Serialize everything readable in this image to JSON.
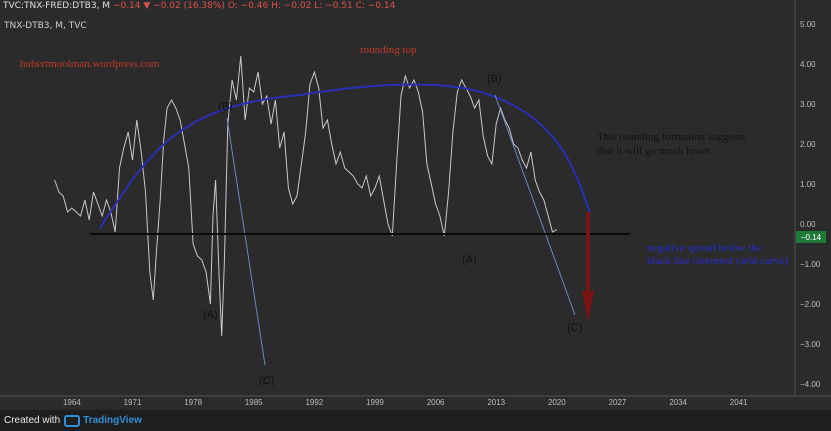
{
  "header": {
    "ticker": "TVC:TNX-FRED:DTB3, M",
    "change": "−0.14 ▼ −0.02 (16.38%)",
    "o": "O: −0.46",
    "h": "H: −0.02",
    "l": "L: −0.51",
    "c": "C: −0.14"
  },
  "symbol_line": "TNX-DTB3, M, TVC",
  "footer": {
    "created_with": "Created with",
    "brand": "TradingView"
  },
  "colors": {
    "price": "#c9c9c9",
    "arc": "#2b2fb8",
    "baseline": "#0a0a0a",
    "arrow": "#7a1414",
    "red_text": "#c0392b",
    "blue_text": "#2a2ad0",
    "last_badge": "#1f7a3a"
  },
  "chart_data": {
    "type": "line",
    "x_ticks": [
      "1964",
      "1971",
      "1978",
      "1985",
      "1992",
      "1999",
      "2006",
      "2013",
      "2020",
      "2027",
      "2034",
      "2041"
    ],
    "y_ticks": [
      "5.00",
      "4.00",
      "3.00",
      "2.00",
      "1.00",
      "0.00",
      "−1.00",
      "−2.00",
      "−3.00",
      "−4.00"
    ],
    "ylim": [
      -4.3,
      5.6
    ],
    "xlim": [
      1955.7,
      2047.5
    ],
    "last_value": "−0.14",
    "series": [
      {
        "x": [
          1962.0,
          1962.5,
          1963.0,
          1963.5,
          1964.0,
          1964.5,
          1965.0,
          1965.5,
          1966.0,
          1966.5,
          1967.0,
          1967.5,
          1968.0,
          1968.5,
          1969.0,
          1969.5,
          1970.0,
          1970.5,
          1971.0,
          1971.5,
          1972.0,
          1972.5,
          1973.0,
          1973.4,
          1973.8,
          1974.2,
          1974.6,
          1975.0,
          1975.5,
          1976.0,
          1976.5,
          1977.0,
          1977.5,
          1978.0,
          1978.5,
          1979.0,
          1979.5,
          1980.0,
          1980.3,
          1980.6,
          1981.0,
          1981.3,
          1981.6,
          1982.0,
          1982.5,
          1983.0,
          1983.5,
          1984.0,
          1984.5,
          1985.0,
          1985.5,
          1986.0,
          1986.5,
          1987.0,
          1987.5,
          1988.0,
          1988.5,
          1989.0,
          1989.5,
          1990.0,
          1990.5,
          1991.0,
          1991.5,
          1992.0,
          1992.5,
          1993.0,
          1993.5,
          1994.0,
          1994.5,
          1995.0,
          1995.5,
          1996.0,
          1996.5,
          1997.0,
          1997.5,
          1998.0,
          1998.5,
          1999.0,
          1999.5,
          2000.0,
          2000.5,
          2001.0,
          2001.5,
          2002.0,
          2002.5,
          2003.0,
          2003.5,
          2004.0,
          2004.5,
          2005.0,
          2005.5,
          2006.0,
          2006.5,
          2007.0,
          2007.5,
          2008.0,
          2008.5,
          2009.0,
          2009.5,
          2010.0,
          2010.5,
          2011.0,
          2011.5,
          2012.0,
          2012.5,
          2013.0,
          2013.5,
          2014.0,
          2014.5,
          2015.0,
          2015.5,
          2016.0,
          2016.5,
          2017.0,
          2017.5,
          2018.0,
          2018.5,
          2019.0,
          2019.5,
          2020.0
        ],
        "y": [
          1.1,
          0.8,
          0.7,
          0.3,
          0.4,
          0.3,
          0.2,
          0.6,
          0.1,
          0.8,
          0.5,
          0.2,
          0.6,
          0.3,
          -0.2,
          1.4,
          1.9,
          2.3,
          1.6,
          2.6,
          1.8,
          0.8,
          -1.2,
          -1.9,
          -0.6,
          0.6,
          2.1,
          2.9,
          3.1,
          2.9,
          2.6,
          2.0,
          1.4,
          -0.5,
          -0.8,
          -0.9,
          -1.2,
          -2.0,
          0.2,
          1.1,
          -1.3,
          -2.8,
          -1.0,
          2.5,
          3.6,
          3.1,
          4.2,
          2.6,
          3.4,
          3.3,
          3.8,
          3.0,
          3.2,
          2.5,
          3.1,
          1.9,
          2.3,
          0.9,
          0.5,
          0.7,
          1.5,
          2.3,
          3.5,
          3.8,
          3.4,
          2.4,
          2.6,
          2.0,
          1.5,
          1.8,
          1.4,
          1.3,
          1.2,
          1.0,
          0.9,
          1.2,
          0.7,
          0.9,
          1.2,
          0.6,
          0.0,
          -0.3,
          1.5,
          3.2,
          3.7,
          3.4,
          3.6,
          3.3,
          2.8,
          1.5,
          1.0,
          0.5,
          0.2,
          -0.3,
          0.8,
          2.3,
          3.3,
          3.6,
          3.4,
          3.2,
          2.9,
          3.1,
          2.2,
          1.7,
          1.5,
          2.5,
          2.9,
          2.6,
          2.4,
          2.0,
          1.9,
          1.6,
          1.4,
          1.8,
          1.1,
          0.8,
          0.6,
          0.2,
          -0.2,
          -0.14
        ]
      }
    ],
    "annotations": {
      "rounding_top": "rounding top",
      "site": "hubertmoolman.wordpress.com",
      "note_line1": "This rounding formation suggests",
      "note_line2": "that it will go much lower",
      "spread_line1": "negative spread below the",
      "spread_line2": "black line (inverted yield curve)",
      "wave_a1": "(A)",
      "wave_b1": "(B)",
      "wave_c1": "(C)",
      "wave_a2": "(A)",
      "wave_b2": "(B)",
      "wave_c2": "(C)"
    }
  }
}
